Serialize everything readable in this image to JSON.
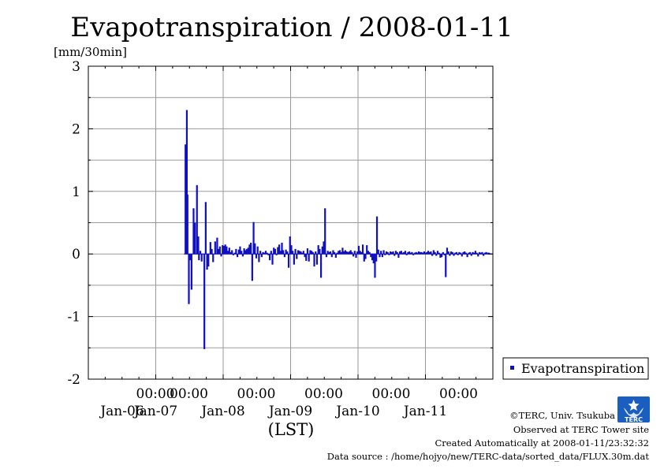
{
  "chart_data": {
    "type": "bar",
    "title": "Evapotranspiration / 2008-01-11",
    "ylabel": "[mm/30min]",
    "xlabel": "(LST)",
    "ylim": [
      -2,
      3
    ],
    "yticks": [
      "-2",
      "-1",
      "0",
      "1",
      "2",
      "3"
    ],
    "xlim": [
      0,
      6
    ],
    "xticks": [
      {
        "time": "00:00",
        "date": "Jan-06"
      },
      {
        "time": "00:00",
        "date": "Jan-07"
      },
      {
        "time": "00:00",
        "date": "Jan-08"
      },
      {
        "time": "00:00",
        "date": "Jan-09"
      },
      {
        "time": "00:00",
        "date": "Jan-10"
      },
      {
        "time": "00:00",
        "date": "Jan-11"
      }
    ],
    "x_unit": "days since 2008-01-06 00:00 LST",
    "grid": true,
    "legend_position": "right",
    "series": [
      {
        "name": "Evapotranspiration",
        "color": "#1010c0",
        "points": [
          [
            1.44,
            1.75
          ],
          [
            1.46,
            2.3
          ],
          [
            1.47,
            0.95
          ],
          [
            1.49,
            -0.8
          ],
          [
            1.51,
            -0.1
          ],
          [
            1.53,
            -0.57
          ],
          [
            1.56,
            0.73
          ],
          [
            1.58,
            0.5
          ],
          [
            1.61,
            1.1
          ],
          [
            1.63,
            0.28
          ],
          [
            1.64,
            -0.1
          ],
          [
            1.66,
            0.05
          ],
          [
            1.68,
            -0.12
          ],
          [
            1.72,
            -1.52
          ],
          [
            1.74,
            0.83
          ],
          [
            1.76,
            -0.25
          ],
          [
            1.78,
            -0.2
          ],
          [
            1.81,
            0.19
          ],
          [
            1.83,
            0.08
          ],
          [
            1.85,
            -0.13
          ],
          [
            1.88,
            0.2
          ],
          [
            1.91,
            0.26
          ],
          [
            1.93,
            0.08
          ],
          [
            1.95,
            0.12
          ],
          [
            1.97,
            -0.04
          ],
          [
            1.99,
            0.14
          ],
          [
            2.01,
            0.13
          ],
          [
            2.03,
            0.15
          ],
          [
            2.05,
            0.12
          ],
          [
            2.07,
            0.05
          ],
          [
            2.09,
            0.1
          ],
          [
            2.11,
            0.03
          ],
          [
            2.13,
            0.06
          ],
          [
            2.15,
            -0.02
          ],
          [
            2.17,
            0.02
          ],
          [
            2.19,
            0.08
          ],
          [
            2.21,
            -0.05
          ],
          [
            2.23,
            0.07
          ],
          [
            2.25,
            0.12
          ],
          [
            2.27,
            0.05
          ],
          [
            2.29,
            -0.04
          ],
          [
            2.31,
            0.09
          ],
          [
            2.33,
            0.06
          ],
          [
            2.35,
            0.08
          ],
          [
            2.37,
            0.1
          ],
          [
            2.39,
            0.15
          ],
          [
            2.41,
            0.18
          ],
          [
            2.43,
            -0.43
          ],
          [
            2.45,
            0.51
          ],
          [
            2.47,
            0.17
          ],
          [
            2.49,
            -0.07
          ],
          [
            2.51,
            0.12
          ],
          [
            2.53,
            -0.13
          ],
          [
            2.55,
            0.05
          ],
          [
            2.57,
            -0.05
          ],
          [
            2.59,
            0.03
          ],
          [
            2.61,
            0.02
          ],
          [
            2.63,
            0.05
          ],
          [
            2.65,
            0.02
          ],
          [
            2.67,
            -0.02
          ],
          [
            2.69,
            -0.1
          ],
          [
            2.71,
            0.05
          ],
          [
            2.73,
            -0.17
          ],
          [
            2.75,
            0.1
          ],
          [
            2.77,
            0.08
          ],
          [
            2.79,
            -0.02
          ],
          [
            2.81,
            0.11
          ],
          [
            2.83,
            0.15
          ],
          [
            2.85,
            0.05
          ],
          [
            2.87,
            0.18
          ],
          [
            2.89,
            0.06
          ],
          [
            2.91,
            -0.05
          ],
          [
            2.93,
            0.07
          ],
          [
            2.95,
            0.04
          ],
          [
            2.97,
            -0.22
          ],
          [
            2.99,
            0.28
          ],
          [
            3.01,
            0.14
          ],
          [
            3.03,
            0.05
          ],
          [
            3.05,
            -0.17
          ],
          [
            3.07,
            0.08
          ],
          [
            3.09,
            -0.08
          ],
          [
            3.11,
            0.06
          ],
          [
            3.13,
            0.05
          ],
          [
            3.15,
            0.04
          ],
          [
            3.17,
            0.02
          ],
          [
            3.19,
            0.05
          ],
          [
            3.21,
            -0.05
          ],
          [
            3.23,
            -0.11
          ],
          [
            3.25,
            0.09
          ],
          [
            3.27,
            -0.12
          ],
          [
            3.29,
            0.06
          ],
          [
            3.31,
            0.05
          ],
          [
            3.33,
            0.03
          ],
          [
            3.35,
            -0.2
          ],
          [
            3.37,
            0.04
          ],
          [
            3.39,
            -0.17
          ],
          [
            3.41,
            0.14
          ],
          [
            3.43,
            0.08
          ],
          [
            3.45,
            -0.38
          ],
          [
            3.47,
            0.12
          ],
          [
            3.49,
            0.2
          ],
          [
            3.51,
            0.73
          ],
          [
            3.53,
            -0.05
          ],
          [
            3.55,
            0.05
          ],
          [
            3.57,
            0.03
          ],
          [
            3.59,
            0.04
          ],
          [
            3.61,
            -0.05
          ],
          [
            3.63,
            0.06
          ],
          [
            3.65,
            0.03
          ],
          [
            3.67,
            -0.06
          ],
          [
            3.69,
            0.02
          ],
          [
            3.71,
            0.05
          ],
          [
            3.73,
            0.06
          ],
          [
            3.75,
            0.03
          ],
          [
            3.77,
            0.1
          ],
          [
            3.79,
            0.04
          ],
          [
            3.81,
            0.06
          ],
          [
            3.83,
            0.04
          ],
          [
            3.85,
            0.03
          ],
          [
            3.87,
            0.04
          ],
          [
            3.89,
            0.06
          ],
          [
            3.91,
            0.03
          ],
          [
            3.93,
            -0.04
          ],
          [
            3.95,
            0.05
          ],
          [
            3.97,
            -0.06
          ],
          [
            3.99,
            0.04
          ],
          [
            4.01,
            0.13
          ],
          [
            4.03,
            0.05
          ],
          [
            4.05,
            0.03
          ],
          [
            4.07,
            0.15
          ],
          [
            4.09,
            -0.12
          ],
          [
            4.11,
            -0.08
          ],
          [
            4.13,
            0.14
          ],
          [
            4.15,
            0.05
          ],
          [
            4.17,
            0.03
          ],
          [
            4.19,
            -0.05
          ],
          [
            4.21,
            -0.1
          ],
          [
            4.23,
            -0.15
          ],
          [
            4.25,
            -0.38
          ],
          [
            4.27,
            -0.12
          ],
          [
            4.28,
            0.6
          ],
          [
            4.3,
            0.07
          ],
          [
            4.32,
            -0.05
          ],
          [
            4.34,
            0.05
          ],
          [
            4.36,
            -0.05
          ],
          [
            4.38,
            0.06
          ],
          [
            4.4,
            -0.02
          ],
          [
            4.42,
            0.04
          ],
          [
            4.44,
            0.03
          ],
          [
            4.46,
            -0.02
          ],
          [
            4.48,
            0.04
          ],
          [
            4.5,
            0.03
          ],
          [
            4.52,
            0.04
          ],
          [
            4.54,
            -0.03
          ],
          [
            4.56,
            0.05
          ],
          [
            4.58,
            0.03
          ],
          [
            4.6,
            -0.06
          ],
          [
            4.62,
            0.04
          ],
          [
            4.64,
            0.05
          ],
          [
            4.66,
            0.02
          ],
          [
            4.68,
            0.03
          ],
          [
            4.7,
            0.05
          ],
          [
            4.72,
            -0.02
          ],
          [
            4.74,
            0.03
          ],
          [
            4.76,
            0.04
          ],
          [
            4.78,
            0.02
          ],
          [
            4.8,
            0.03
          ],
          [
            4.82,
            -0.02
          ],
          [
            4.84,
            0.02
          ],
          [
            4.86,
            0.03
          ],
          [
            4.88,
            0.02
          ],
          [
            4.9,
            0.04
          ],
          [
            4.92,
            0.03
          ],
          [
            4.94,
            0.03
          ],
          [
            4.96,
            0.02
          ],
          [
            4.98,
            0.04
          ],
          [
            5.0,
            0.02
          ],
          [
            5.02,
            0.03
          ],
          [
            5.04,
            0.05
          ],
          [
            5.06,
            0.03
          ],
          [
            5.08,
            0.04
          ],
          [
            5.1,
            -0.03
          ],
          [
            5.12,
            0.06
          ],
          [
            5.14,
            0.03
          ],
          [
            5.16,
            -0.03
          ],
          [
            5.18,
            0.05
          ],
          [
            5.2,
            0.02
          ],
          [
            5.22,
            -0.06
          ],
          [
            5.24,
            -0.05
          ],
          [
            5.26,
            0.03
          ],
          [
            5.28,
            -0.02
          ],
          [
            5.3,
            -0.37
          ],
          [
            5.32,
            0.1
          ],
          [
            5.34,
            0.04
          ],
          [
            5.36,
            -0.03
          ],
          [
            5.38,
            0.04
          ],
          [
            5.4,
            0.03
          ],
          [
            5.42,
            -0.03
          ],
          [
            5.44,
            0.02
          ],
          [
            5.46,
            0.03
          ],
          [
            5.48,
            -0.02
          ],
          [
            5.5,
            0.03
          ],
          [
            5.52,
            0.02
          ],
          [
            5.54,
            -0.04
          ],
          [
            5.56,
            0.03
          ],
          [
            5.58,
            0.04
          ],
          [
            5.6,
            0.02
          ],
          [
            5.62,
            -0.05
          ],
          [
            5.64,
            0.02
          ],
          [
            5.66,
            0.03
          ],
          [
            5.68,
            -0.03
          ],
          [
            5.7,
            0.03
          ],
          [
            5.72,
            0.02
          ],
          [
            5.74,
            0.05
          ],
          [
            5.76,
            0.02
          ],
          [
            5.78,
            -0.04
          ],
          [
            5.8,
            0.03
          ],
          [
            5.82,
            0.02
          ],
          [
            5.84,
            0.03
          ],
          [
            5.86,
            -0.03
          ],
          [
            5.88,
            0.02
          ],
          [
            5.9,
            0.03
          ],
          [
            5.92,
            0.02
          ],
          [
            5.94,
            0.02
          ],
          [
            5.96,
            0.01
          ]
        ]
      }
    ]
  },
  "credits": {
    "copyright": "©TERC, Univ. Tsukuba",
    "observed": "Observed at TERC Tower site",
    "created": "Created Automatically at 2008-01-11/23:32:32",
    "source": "Data source : /home/hojyo/new/TERC-data/sorted_data/FLUX.30m.dat"
  },
  "logo": {
    "text": "TERC",
    "color": "#1a5fbf"
  }
}
